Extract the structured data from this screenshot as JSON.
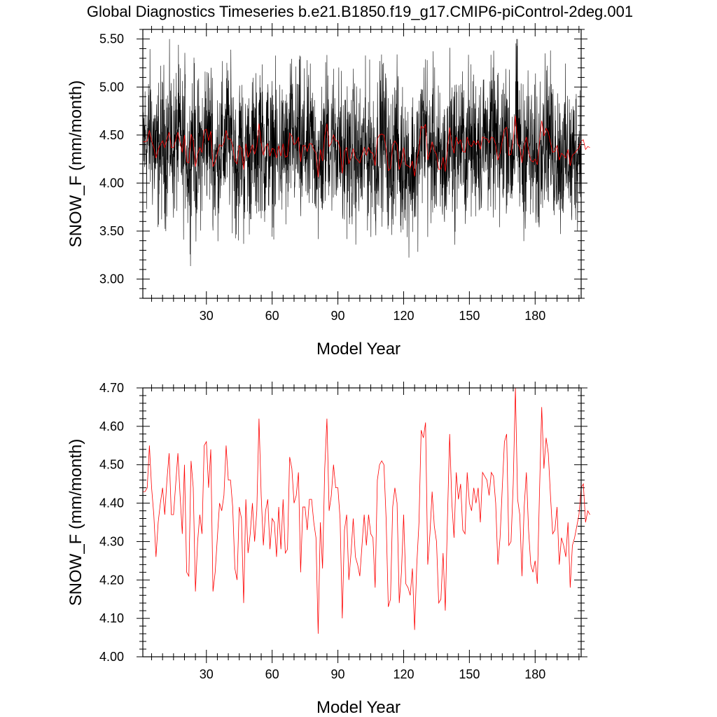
{
  "title": "Global Diagnostics Timeseries b.e21.B1850.f19_g17.CMIP6-piControl-2deg.001",
  "colors": {
    "monthly": "#000000",
    "annual": "#ff0000"
  },
  "chart_data": [
    {
      "type": "line",
      "name": "monthly-and-annual-timeseries",
      "xlabel": "Model Year",
      "ylabel": "SNOW_F (mm/month)",
      "xlim": [
        1,
        201
      ],
      "ylim": [
        2.8,
        5.6
      ],
      "xticks": [
        30,
        60,
        90,
        120,
        150,
        180
      ],
      "xtick_labels": [
        "30",
        "60",
        "90",
        "120",
        "150",
        "180"
      ],
      "yticks": [
        3.0,
        3.5,
        4.0,
        4.5,
        5.0,
        5.5
      ],
      "ytick_labels": [
        "3.00",
        "3.50",
        "4.00",
        "4.50",
        "5.00",
        "5.50"
      ],
      "series": [
        {
          "name": "monthly",
          "color": "#000000",
          "base": 4.4,
          "amplitude": 0.42,
          "n_points": 2400,
          "peak_max": 5.5,
          "peak_min": 3.04
        },
        {
          "name": "annual",
          "color": "#ff0000",
          "ref": "annual_values"
        }
      ]
    },
    {
      "type": "line",
      "name": "annual-timeseries",
      "xlabel": "Model Year",
      "ylabel": "SNOW_F (mm/month)",
      "xlim": [
        1,
        201
      ],
      "ylim": [
        4.0,
        4.7
      ],
      "xticks": [
        30,
        60,
        90,
        120,
        150,
        180
      ],
      "xtick_labels": [
        "30",
        "60",
        "90",
        "120",
        "150",
        "180"
      ],
      "yticks": [
        4.0,
        4.1,
        4.2,
        4.3,
        4.4,
        4.5,
        4.6,
        4.7
      ],
      "ytick_labels": [
        "4.00",
        "4.10",
        "4.20",
        "4.30",
        "4.40",
        "4.50",
        "4.60",
        "4.70"
      ],
      "series": [
        {
          "name": "annual",
          "color": "#ff0000",
          "ref": "annual_values"
        }
      ]
    }
  ],
  "annual_values": [
    4.43,
    4.43,
    4.44,
    4.55,
    4.44,
    4.37,
    4.26,
    4.35,
    4.4,
    4.44,
    4.37,
    4.46,
    4.53,
    4.37,
    4.37,
    4.45,
    4.53,
    4.42,
    4.32,
    4.5,
    4.22,
    4.21,
    4.51,
    4.44,
    4.17,
    4.3,
    4.37,
    4.32,
    4.55,
    4.56,
    4.44,
    4.54,
    4.17,
    4.22,
    4.31,
    4.4,
    4.38,
    4.42,
    4.55,
    4.46,
    4.46,
    4.39,
    4.23,
    4.2,
    4.39,
    4.36,
    4.14,
    4.41,
    4.27,
    4.32,
    4.4,
    4.3,
    4.38,
    4.62,
    4.42,
    4.29,
    4.38,
    4.41,
    4.28,
    4.36,
    4.35,
    4.26,
    4.39,
    4.28,
    4.41,
    4.27,
    4.28,
    4.52,
    4.49,
    4.4,
    4.42,
    4.48,
    4.22,
    4.39,
    4.39,
    4.33,
    4.41,
    4.41,
    4.35,
    4.31,
    4.06,
    4.35,
    4.23,
    4.49,
    4.62,
    4.38,
    4.42,
    4.5,
    4.44,
    4.44,
    4.36,
    4.1,
    4.33,
    4.37,
    4.2,
    4.27,
    4.36,
    4.26,
    4.24,
    4.21,
    4.29,
    4.37,
    4.29,
    4.37,
    4.32,
    4.31,
    4.18,
    4.46,
    4.5,
    4.51,
    4.5,
    4.36,
    4.13,
    4.15,
    4.39,
    4.44,
    4.4,
    4.14,
    4.22,
    4.37,
    4.19,
    4.18,
    4.16,
    4.23,
    4.07,
    4.24,
    4.35,
    4.59,
    4.57,
    4.61,
    4.24,
    4.32,
    4.43,
    4.34,
    4.3,
    4.14,
    4.15,
    4.27,
    4.12,
    4.36,
    4.58,
    4.4,
    4.31,
    4.48,
    4.41,
    4.45,
    4.33,
    4.32,
    4.48,
    4.4,
    4.38,
    4.44,
    4.4,
    4.44,
    4.35,
    4.48,
    4.47,
    4.46,
    4.42,
    4.48,
    4.47,
    4.4,
    4.24,
    4.31,
    4.44,
    4.56,
    4.58,
    4.29,
    4.3,
    4.45,
    4.7,
    4.41,
    4.37,
    4.21,
    4.39,
    4.48,
    4.33,
    4.24,
    4.22,
    4.25,
    4.19,
    4.43,
    4.65,
    4.49,
    4.57,
    4.53,
    4.42,
    4.32,
    4.33,
    4.39,
    4.24,
    4.31,
    4.29,
    4.26,
    4.35,
    4.18,
    4.29,
    4.31,
    4.34,
    4.37,
    4.44,
    4.45,
    4.35,
    4.38,
    4.37
  ]
}
